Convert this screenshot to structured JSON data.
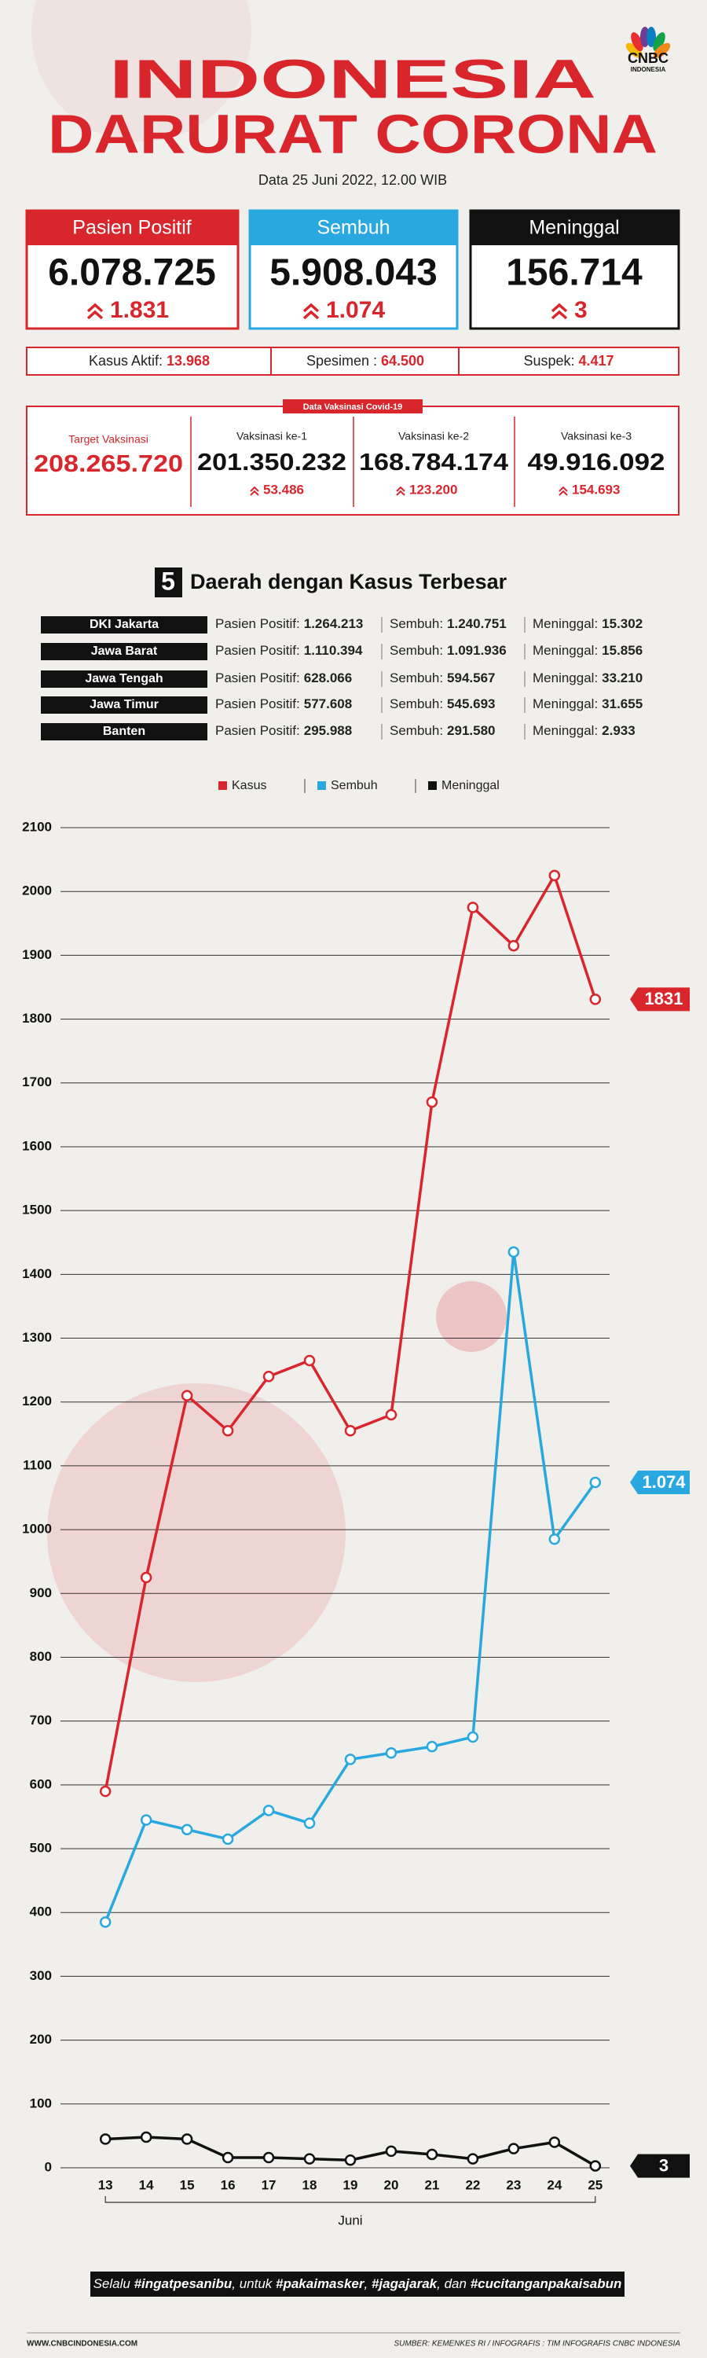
{
  "logo": {
    "brand": "CNBC",
    "sub": "INDONESIA"
  },
  "header": {
    "title_line1": "INDONESIA",
    "title_line2": "DARURAT CORONA",
    "date": "Data 25 Juni 2022, 12.00 WIB"
  },
  "cards": [
    {
      "label": "Pasien Positif",
      "total": "6.078.725",
      "delta": "1.831"
    },
    {
      "label": "Sembuh",
      "total": "5.908.043",
      "delta": "1.074"
    },
    {
      "label": "Meninggal",
      "total": "156.714",
      "delta": "3"
    }
  ],
  "stats": [
    {
      "label": "Kasus Aktif:",
      "value": "13.968"
    },
    {
      "label": "Spesimen :",
      "value": "64.500"
    },
    {
      "label": "Suspek:",
      "value": "4.417"
    }
  ],
  "vaccination": {
    "title": "Data Vaksinasi Covid-19",
    "target": {
      "label": "Target Vaksinasi",
      "value": "208.265.720"
    },
    "doses": [
      {
        "label": "Vaksinasi ke-1",
        "value": "201.350.232",
        "delta": "53.486"
      },
      {
        "label": "Vaksinasi ke-2",
        "value": "168.784.174",
        "delta": "123.200"
      },
      {
        "label": "Vaksinasi ke-3",
        "value": "49.916.092",
        "delta": "154.693"
      }
    ]
  },
  "regions": {
    "number": "5",
    "title": "Daerah dengan Kasus Terbesar",
    "labels": [
      "Pasien Positif:",
      "Sembuh:",
      "Meninggal:"
    ],
    "rows": [
      [
        "DKI Jakarta",
        "1.264.213",
        "1.240.751",
        "15.302"
      ],
      [
        "Jawa Barat",
        "1.110.394",
        "1.091.936",
        "15.856"
      ],
      [
        "Jawa Tengah",
        "628.066",
        "594.567",
        "33.210"
      ],
      [
        "Jawa Timur",
        "577.608",
        "545.693",
        "31.655"
      ],
      [
        "Banten",
        "295.988",
        "291.580",
        "2.933"
      ]
    ]
  },
  "chart_data": {
    "type": "line",
    "x": [
      13,
      14,
      15,
      16,
      17,
      18,
      19,
      20,
      21,
      22,
      23,
      24,
      25
    ],
    "xlabel": "Juni",
    "xlim": [
      11.9,
      25.35
    ],
    "ylim": [
      0,
      2100
    ],
    "yticks": [
      0,
      100,
      200,
      300,
      400,
      500,
      600,
      700,
      800,
      900,
      1000,
      1100,
      1200,
      1300,
      1400,
      1500,
      1600,
      1700,
      1800,
      1900,
      2000,
      2100
    ],
    "grid": true,
    "end_labels": true,
    "series": [
      {
        "name": "Kasus",
        "color": "#d9262c",
        "values": [
          590,
          925,
          1210,
          1155,
          1240,
          1265,
          1155,
          1180,
          1670,
          1975,
          1915,
          2025,
          1831
        ]
      },
      {
        "name": "Sembuh",
        "color": "#29a8e0",
        "values": [
          385,
          545,
          530,
          515,
          560,
          540,
          640,
          650,
          660,
          675,
          1435,
          985,
          1074
        ],
        "value_labels": [
          null,
          null,
          null,
          null,
          null,
          null,
          null,
          null,
          null,
          null,
          null,
          null,
          "1.074"
        ]
      },
      {
        "name": "Meninggal",
        "color": "#111111",
        "values": [
          45,
          48,
          45,
          16,
          16,
          14,
          12,
          26,
          21,
          14,
          30,
          40,
          3
        ]
      }
    ]
  },
  "footer": {
    "slogan": [
      "Selalu ",
      "#ingatpesanibu",
      ", untuk ",
      "#pakaimasker",
      ", ",
      "#jagajarak",
      ", dan ",
      "#cucitanganpakaisabun"
    ],
    "website": "WWW.CNBCINDONESIA.COM",
    "source": "SUMBER: KEMENKES RI / INFOGRAFIS : TIM INFOGRAFIS CNBC INDONESIA"
  }
}
